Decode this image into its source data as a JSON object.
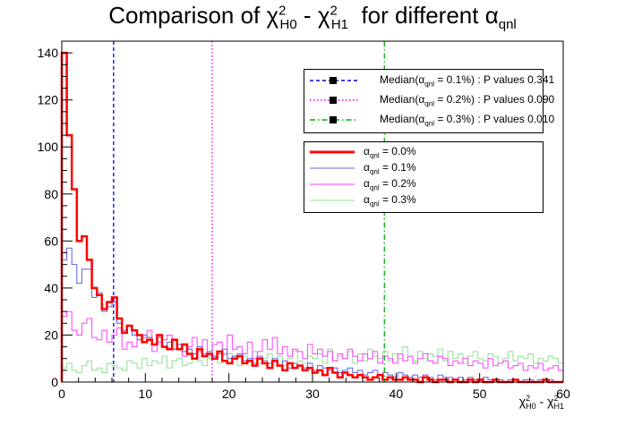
{
  "chart_data": {
    "type": "histogram",
    "title": {
      "prefix": "Comparison of ",
      "chi": "χ",
      "sup": "2",
      "sub_h0": "H0",
      "sub_h1": "H1",
      "minus": " - ",
      "suffix_pre": "  for different ",
      "alpha": "α",
      "sub_alpha": "qnl"
    },
    "xlabel": {
      "chi": "χ",
      "sup": "2",
      "sub_h0": "H0",
      "sub_h1": "H1",
      "minus": " - "
    },
    "xlim": [
      0,
      60
    ],
    "ylim": [
      0,
      145
    ],
    "xticks": [
      0,
      10,
      20,
      30,
      40,
      50,
      60
    ],
    "yticks": [
      0,
      20,
      40,
      60,
      80,
      100,
      120,
      140
    ],
    "bin_width": 0.6,
    "series": [
      {
        "name": "α_qnl = 0.0%",
        "color": "#ff0000",
        "width": 2.5,
        "values": [
          140,
          105,
          82,
          60,
          62,
          52,
          40,
          37,
          31,
          34,
          36,
          27,
          21,
          24,
          22,
          20,
          17,
          18,
          16,
          20,
          15,
          14,
          18,
          14,
          16,
          12,
          10,
          14,
          11,
          12,
          10,
          13,
          9,
          8,
          10,
          11,
          8,
          9,
          7,
          10,
          8,
          6,
          9,
          7,
          5,
          8,
          6,
          7,
          5,
          6,
          4,
          5,
          3,
          6,
          4,
          2,
          4,
          3,
          2,
          3,
          2,
          1,
          2,
          3,
          1,
          2,
          1,
          1,
          2,
          1,
          1,
          0,
          2,
          1,
          0,
          1,
          1,
          0,
          1,
          0,
          0,
          1,
          0,
          1,
          0,
          0,
          1,
          0,
          0,
          0,
          1,
          0,
          0,
          0,
          0,
          0,
          1,
          0,
          0,
          0
        ]
      },
      {
        "name": "α_qnl = 0.1%",
        "color": "#6060e0",
        "width": 1,
        "values": [
          52,
          57,
          50,
          42,
          48,
          48,
          36,
          38,
          30,
          32,
          34,
          25,
          22,
          24,
          20,
          18,
          20,
          19,
          16,
          19,
          15,
          17,
          14,
          16,
          13,
          14,
          12,
          15,
          12,
          13,
          11,
          12,
          14,
          10,
          11,
          12,
          9,
          10,
          8,
          11,
          9,
          8,
          10,
          7,
          9,
          6,
          8,
          7,
          6,
          8,
          5,
          7,
          6,
          5,
          6,
          4,
          5,
          6,
          4,
          5,
          3,
          4,
          5,
          3,
          4,
          3,
          2,
          4,
          3,
          2,
          3,
          2,
          3,
          2,
          1,
          3,
          2,
          2,
          1,
          2,
          1,
          2,
          1,
          1,
          2,
          1,
          1,
          1,
          0,
          1,
          1,
          0,
          1,
          1,
          0,
          1,
          0,
          1,
          0,
          0
        ]
      },
      {
        "name": "α_qnl = 0.2%",
        "color": "#ff40ff",
        "width": 1,
        "values": [
          28,
          30,
          22,
          20,
          25,
          27,
          19,
          18,
          22,
          17,
          20,
          23,
          14,
          17,
          15,
          20,
          19,
          22,
          13,
          17,
          18,
          20,
          14,
          16,
          11,
          15,
          19,
          13,
          18,
          12,
          16,
          17,
          12,
          20,
          14,
          15,
          12,
          17,
          10,
          13,
          18,
          14,
          19,
          12,
          15,
          11,
          14,
          13,
          10,
          16,
          12,
          14,
          11,
          13,
          9,
          12,
          10,
          14,
          11,
          9,
          12,
          10,
          13,
          8,
          11,
          10,
          8,
          12,
          9,
          11,
          8,
          10,
          12,
          9,
          8,
          11,
          10,
          7,
          9,
          8,
          10,
          7,
          9,
          8,
          6,
          10,
          7,
          8,
          9,
          6,
          7,
          8,
          5,
          7,
          6,
          8,
          5,
          6,
          7,
          5
        ]
      },
      {
        "name": "α_qnl = 0.3%",
        "color": "#90e090",
        "width": 1,
        "values": [
          6,
          8,
          5,
          4,
          7,
          9,
          5,
          6,
          4,
          8,
          7,
          6,
          5,
          9,
          8,
          6,
          10,
          7,
          9,
          8,
          11,
          6,
          9,
          10,
          7,
          8,
          12,
          9,
          7,
          10,
          11,
          8,
          9,
          12,
          10,
          7,
          11,
          9,
          13,
          8,
          10,
          12,
          9,
          11,
          7,
          10,
          13,
          9,
          8,
          11,
          10,
          12,
          8,
          14,
          9,
          11,
          10,
          13,
          8,
          12,
          9,
          14,
          11,
          10,
          13,
          9,
          12,
          10,
          15,
          11,
          9,
          13,
          10,
          12,
          11,
          14,
          9,
          13,
          10,
          12,
          8,
          11,
          13,
          10,
          9,
          12,
          11,
          8,
          10,
          13,
          9,
          11,
          10,
          12,
          8,
          10,
          9,
          11,
          10,
          8
        ]
      }
    ],
    "medians": [
      {
        "x": 6.2,
        "color": "#0000e0",
        "dash": "4,3",
        "label_pre": "Median(α",
        "label_sub": "qnl",
        "label_post": " = 0.1%) : P values 0.341"
      },
      {
        "x": 18.0,
        "color": "#e000e0",
        "dash": "1.5,2.5",
        "label_pre": "Median(α",
        "label_sub": "qnl",
        "label_post": " = 0.2%) : P values 0.090"
      },
      {
        "x": 38.6,
        "color": "#00b000",
        "dash": "6,3,1.5,3",
        "label_pre": "Median(α",
        "label_sub": "qnl",
        "label_post": " = 0.3%) : P values 0.010"
      }
    ],
    "legend_series": [
      {
        "label_pre": "α",
        "label_sub": "qnl",
        "label_post": " = 0.0%"
      },
      {
        "label_pre": "α",
        "label_sub": "qnl",
        "label_post": " = 0.1%"
      },
      {
        "label_pre": "α",
        "label_sub": "qnl",
        "label_post": " = 0.2%"
      },
      {
        "label_pre": "α",
        "label_sub": "qnl",
        "label_post": " = 0.3%"
      }
    ]
  }
}
